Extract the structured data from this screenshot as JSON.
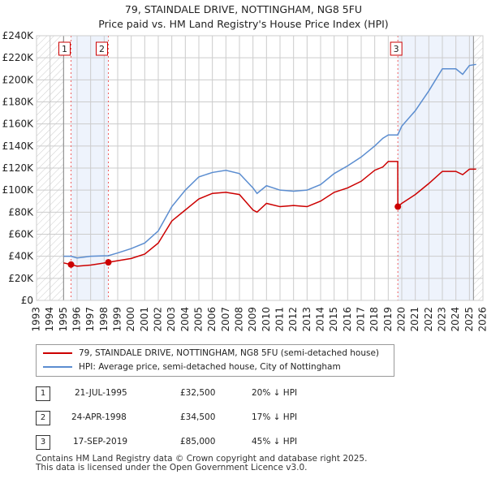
{
  "chart_data": {
    "type": "line",
    "title": "79, STAINDALE DRIVE, NOTTINGHAM, NG8 5FU",
    "subtitle": "Price paid vs. HM Land Registry's House Price Index (HPI)",
    "xlim": [
      1993,
      2026
    ],
    "ylim": [
      0,
      240000
    ],
    "x_ticks": [
      "1993",
      "1994",
      "1995",
      "1996",
      "1997",
      "1998",
      "1999",
      "2000",
      "2001",
      "2002",
      "2003",
      "2004",
      "2005",
      "2006",
      "2007",
      "2008",
      "2009",
      "2010",
      "2011",
      "2012",
      "2013",
      "2014",
      "2015",
      "2016",
      "2017",
      "2018",
      "2019",
      "2020",
      "2021",
      "2022",
      "2023",
      "2024",
      "2025",
      "2026"
    ],
    "y_ticks": [
      "£0",
      "£20K",
      "£40K",
      "£60K",
      "£80K",
      "£100K",
      "£120K",
      "£140K",
      "£160K",
      "£180K",
      "£200K",
      "£220K",
      "£240K"
    ],
    "grid": true,
    "series": [
      {
        "name": "79, STAINDALE DRIVE, NOTTINGHAM, NG8 5FU (semi-detached house)",
        "color": "#cc0000",
        "x": [
          1995.0,
          1995.55,
          1996,
          1997,
          1998.3,
          1999,
          2000,
          2001,
          2002,
          2003,
          2004,
          2005,
          2006,
          2007,
          2008,
          2009,
          2009.3,
          2010,
          2011,
          2012,
          2013,
          2014,
          2015,
          2016,
          2017,
          2018,
          2018.6,
          2019.0,
          2019.7,
          2019.71,
          2020,
          2021,
          2022,
          2023,
          2024,
          2024.5,
          2025,
          2025.5
        ],
        "y": [
          34000,
          32500,
          31000,
          32000,
          34500,
          36000,
          38000,
          42000,
          52000,
          72000,
          82000,
          92000,
          97000,
          98000,
          96000,
          82000,
          80000,
          88000,
          85000,
          86000,
          85000,
          90000,
          98000,
          102000,
          108000,
          118000,
          121000,
          126000,
          126000,
          85000,
          88000,
          96000,
          106000,
          117000,
          117000,
          114000,
          119000,
          119000
        ]
      },
      {
        "name": "HPI: Average price, semi-detached house, City of Nottingham",
        "color": "#5b8dd0",
        "x": [
          1995.0,
          1995.55,
          1996,
          1997,
          1998.3,
          1999,
          2000,
          2001,
          2002,
          2003,
          2004,
          2005,
          2006,
          2007,
          2008,
          2009,
          2009.3,
          2010,
          2011,
          2012,
          2013,
          2014,
          2015,
          2016,
          2017,
          2018,
          2018.6,
          2019.0,
          2019.7,
          2020,
          2021,
          2022,
          2023,
          2024,
          2024.5,
          2025,
          2025.5
        ],
        "y": [
          40000,
          40000,
          38500,
          40000,
          40500,
          43000,
          47000,
          52000,
          63000,
          85000,
          100000,
          112000,
          116000,
          118000,
          115000,
          102000,
          97000,
          104000,
          100000,
          99000,
          100000,
          105000,
          115000,
          122000,
          130000,
          140000,
          147000,
          150000,
          150000,
          158000,
          172000,
          190000,
          210000,
          210000,
          205000,
          213000,
          214000
        ]
      }
    ],
    "sales": [
      {
        "label": "1",
        "x": 1995.55,
        "y": 32500
      },
      {
        "label": "2",
        "x": 1998.31,
        "y": 34500
      },
      {
        "label": "3",
        "x": 2019.71,
        "y": 85000
      }
    ],
    "legend_placement": "bottom"
  },
  "transactions": [
    {
      "num": "1",
      "date": "21-JUL-1995",
      "price": "£32,500",
      "hpi": "20% ↓ HPI"
    },
    {
      "num": "2",
      "date": "24-APR-1998",
      "price": "£34,500",
      "hpi": "17% ↓ HPI"
    },
    {
      "num": "3",
      "date": "17-SEP-2019",
      "price": "£85,000",
      "hpi": "45% ↓ HPI"
    }
  ],
  "footer": {
    "line1": "Contains HM Land Registry data © Crown copyright and database right 2025.",
    "line2": "This data is licensed under the Open Government Licence v3.0."
  }
}
